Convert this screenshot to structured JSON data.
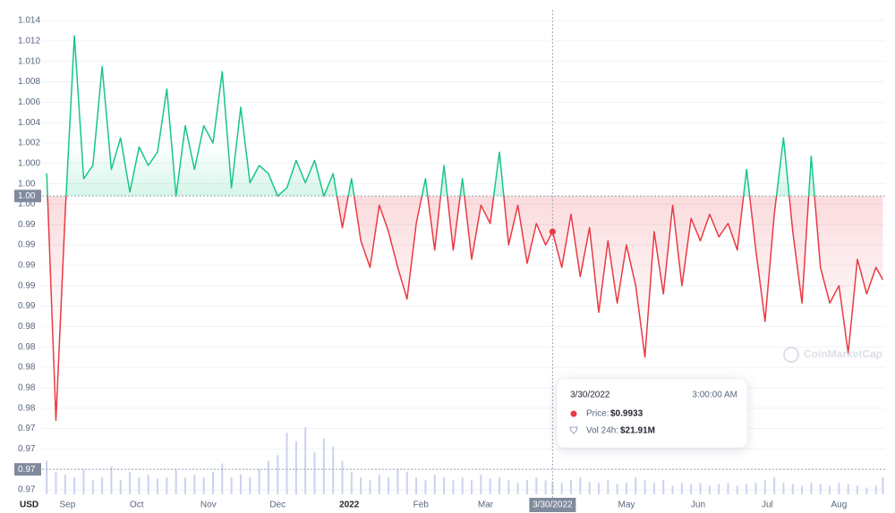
{
  "chart_data": {
    "type": "line",
    "currency": "USD",
    "watermark": "CoinMarketCap",
    "x": [
      "2021-08-23",
      "2021-08-27",
      "2021-08-31",
      "2021-09-04",
      "2021-09-08",
      "2021-09-12",
      "2021-09-16",
      "2021-09-20",
      "2021-09-24",
      "2021-09-28",
      "2021-10-02",
      "2021-10-06",
      "2021-10-10",
      "2021-10-14",
      "2021-10-18",
      "2021-10-22",
      "2021-10-26",
      "2021-10-30",
      "2021-11-03",
      "2021-11-07",
      "2021-11-11",
      "2021-11-15",
      "2021-11-19",
      "2021-11-23",
      "2021-11-27",
      "2021-12-01",
      "2021-12-05",
      "2021-12-09",
      "2021-12-13",
      "2021-12-17",
      "2021-12-21",
      "2021-12-25",
      "2021-12-29",
      "2022-01-02",
      "2022-01-06",
      "2022-01-10",
      "2022-01-14",
      "2022-01-18",
      "2022-01-22",
      "2022-01-26",
      "2022-01-30",
      "2022-02-03",
      "2022-02-07",
      "2022-02-11",
      "2022-02-15",
      "2022-02-19",
      "2022-02-23",
      "2022-02-27",
      "2022-03-03",
      "2022-03-07",
      "2022-03-11",
      "2022-03-15",
      "2022-03-19",
      "2022-03-23",
      "2022-03-27",
      "2022-03-30",
      "2022-04-03",
      "2022-04-07",
      "2022-04-11",
      "2022-04-15",
      "2022-04-19",
      "2022-04-23",
      "2022-04-27",
      "2022-05-01",
      "2022-05-05",
      "2022-05-09",
      "2022-05-13",
      "2022-05-17",
      "2022-05-21",
      "2022-05-25",
      "2022-05-29",
      "2022-06-02",
      "2022-06-06",
      "2022-06-10",
      "2022-06-14",
      "2022-06-18",
      "2022-06-22",
      "2022-06-26",
      "2022-06-30",
      "2022-07-04",
      "2022-07-08",
      "2022-07-12",
      "2022-07-16",
      "2022-07-20",
      "2022-07-24",
      "2022-07-28",
      "2022-08-01",
      "2022-08-05",
      "2022-08-09",
      "2022-08-13",
      "2022-08-17",
      "2022-08-20"
    ],
    "series": [
      {
        "name": "Price",
        "up_color": "#16c784",
        "down_color": "#ea3943",
        "values": [
          0.999,
          0.9748,
          0.995,
          1.0125,
          0.9985,
          0.9998,
          1.0095,
          0.9994,
          1.0025,
          0.9972,
          1.0016,
          0.9998,
          1.0011,
          1.0073,
          0.9968,
          1.0037,
          0.9994,
          1.0037,
          1.002,
          1.009,
          0.9976,
          1.0055,
          0.9981,
          0.9998,
          0.999,
          0.9968,
          0.9976,
          1.0003,
          0.9981,
          1.0003,
          0.9968,
          0.999,
          0.9937,
          0.9985,
          0.9924,
          0.9898,
          0.9959,
          0.9933,
          0.9898,
          0.9867,
          0.9941,
          0.9985,
          0.9915,
          0.9998,
          0.9915,
          0.9985,
          0.9906,
          0.9959,
          0.9941,
          1.0011,
          0.992,
          0.9959,
          0.9902,
          0.9941,
          0.992,
          0.9933,
          0.9898,
          0.995,
          0.9889,
          0.9937,
          0.9854,
          0.9924,
          0.9863,
          0.992,
          0.988,
          0.981,
          0.9933,
          0.9872,
          0.9959,
          0.988,
          0.9946,
          0.9924,
          0.995,
          0.9928,
          0.9941,
          0.9915,
          0.9994,
          0.9915,
          0.9845,
          0.995,
          1.0025,
          0.9933,
          0.9863,
          1.0007,
          0.9898,
          0.9863,
          0.988,
          0.9814,
          0.9906,
          0.9872,
          0.9898,
          0.9886
        ]
      },
      {
        "name": "Vol 24h",
        "color": "#c9d3ee",
        "axis": "volume",
        "values": [
          60,
          40,
          35,
          30,
          45,
          25,
          30,
          50,
          25,
          40,
          30,
          35,
          28,
          30,
          45,
          30,
          35,
          30,
          40,
          55,
          30,
          35,
          30,
          45,
          60,
          70,
          110,
          95,
          120,
          75,
          100,
          85,
          60,
          40,
          30,
          25,
          35,
          30,
          45,
          40,
          30,
          25,
          35,
          30,
          25,
          30,
          25,
          35,
          28,
          30,
          25,
          20,
          25,
          30,
          25,
          21.91,
          20,
          25,
          30,
          22,
          20,
          25,
          18,
          20,
          30,
          25,
          20,
          25,
          15,
          20,
          18,
          20,
          15,
          18,
          20,
          15,
          18,
          20,
          25,
          30,
          20,
          18,
          15,
          20,
          18,
          15,
          20,
          18,
          15,
          12,
          15,
          30
        ]
      }
    ],
    "xlim": [
      "2021-08-21",
      "2022-08-21"
    ],
    "xticks": [
      {
        "value": "2021-09-01",
        "label": "Sep"
      },
      {
        "value": "2021-10-01",
        "label": "Oct"
      },
      {
        "value": "2021-11-01",
        "label": "Nov"
      },
      {
        "value": "2021-12-01",
        "label": "Dec"
      },
      {
        "value": "2022-01-01",
        "label": "2022"
      },
      {
        "value": "2022-02-01",
        "label": "Feb"
      },
      {
        "value": "2022-03-01",
        "label": "Mar"
      },
      {
        "value": "2022-05-01",
        "label": "May"
      },
      {
        "value": "2022-06-01",
        "label": "Jun"
      },
      {
        "value": "2022-07-01",
        "label": "Jul"
      },
      {
        "value": "2022-08-01",
        "label": "Aug"
      }
    ],
    "ylim": [
      0.967,
      1.015
    ],
    "yticks": [
      1.014,
      1.012,
      {
        "value": 1.01,
        "label": "1.010"
      },
      1.008,
      1.006,
      1.004,
      1.002,
      {
        "value": 1,
        "label": "1.000"
      },
      {
        "value": 0.998,
        "label": "1.00"
      },
      {
        "value": 0.996,
        "label": "1.00"
      },
      {
        "value": 0.994,
        "label": "0.99"
      },
      {
        "value": 0.992,
        "label": "0.99"
      },
      {
        "value": 0.99,
        "label": "0.99"
      },
      {
        "value": 0.988,
        "label": "0.99"
      },
      {
        "value": 0.986,
        "label": "0.99"
      },
      {
        "value": 0.984,
        "label": "0.98"
      },
      {
        "value": 0.982,
        "label": "0.98"
      },
      {
        "value": 0.98,
        "label": "0.98"
      },
      {
        "value": 0.978,
        "label": "0.98"
      },
      {
        "value": 0.976,
        "label": "0.98"
      },
      {
        "value": 0.974,
        "label": "0.97"
      },
      {
        "value": 0.972,
        "label": "0.97"
      },
      {
        "value": 0.97,
        "label": "0.97"
      },
      {
        "value": 0.968,
        "label": "0.97"
      }
    ],
    "grid": true,
    "baseline": {
      "value": 0.9968,
      "label": "1.00"
    },
    "crosshair": {
      "x": "2022-03-30",
      "x_label": "3/30/2022",
      "y": 0.97,
      "y_label": "0.97"
    },
    "tooltip": {
      "date": "3/30/2022",
      "time": "3:00:00 AM",
      "price_label": "Price:",
      "price": "$0.9933",
      "volume_label": "Vol 24h:",
      "volume": "$21.91M"
    }
  }
}
